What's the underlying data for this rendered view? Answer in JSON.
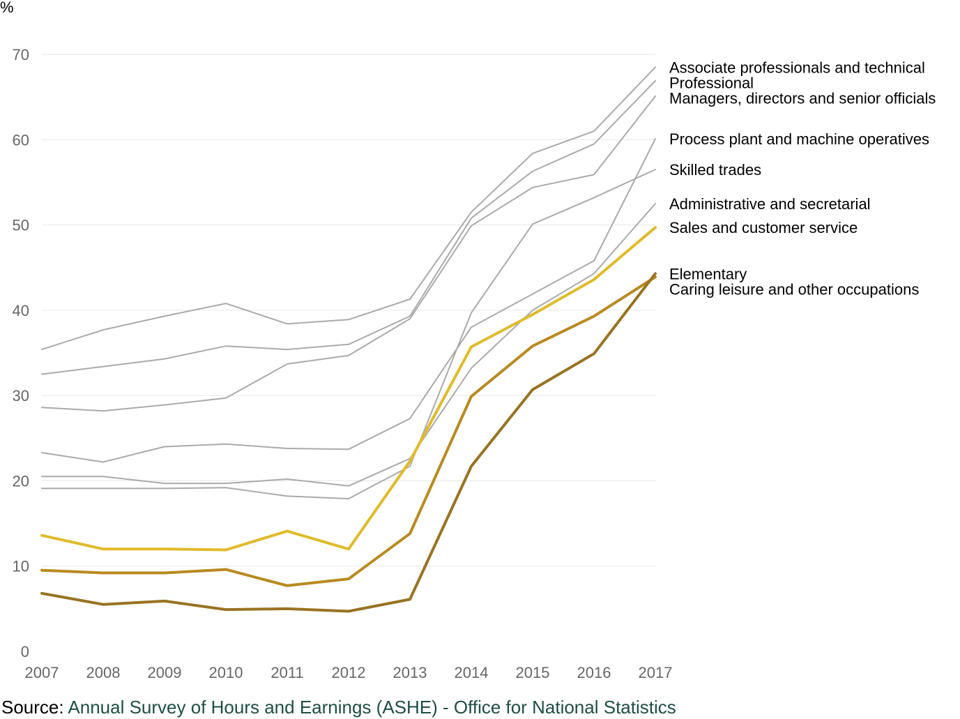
{
  "chart_data": {
    "type": "line",
    "y_unit_label": "%",
    "x": [
      "2007",
      "2008",
      "2009",
      "2010",
      "2011",
      "2012",
      "2013",
      "2014",
      "2015",
      "2016",
      "2017"
    ],
    "ylim": [
      0,
      70
    ],
    "y_ticks": [
      0,
      10,
      20,
      30,
      40,
      50,
      60,
      70
    ],
    "grid": true,
    "legend": "direct labels at right end of lines",
    "series": [
      {
        "name": "Associate professionals and technical",
        "color": "#aaaaaa",
        "width": 2,
        "values": [
          35.4,
          37.7,
          39.3,
          40.8,
          38.4,
          38.9,
          41.3,
          51.5,
          58.4,
          61.0,
          68.5
        ]
      },
      {
        "name": "Professional",
        "color": "#aaaaaa",
        "width": 2,
        "values": [
          32.5,
          33.4,
          34.3,
          35.8,
          35.4,
          36.0,
          39.3,
          50.8,
          56.3,
          59.5,
          66.9
        ]
      },
      {
        "name": "Managers, directors and senior officials",
        "color": "#aaaaaa",
        "width": 2,
        "values": [
          28.6,
          28.2,
          28.9,
          29.7,
          33.7,
          34.7,
          39.0,
          49.9,
          54.4,
          55.9,
          65.1
        ]
      },
      {
        "name": "Process plant and machine operatives",
        "color": "#aaaaaa",
        "width": 2,
        "values": [
          23.3,
          22.2,
          24.0,
          24.3,
          23.8,
          23.7,
          27.3,
          38.0,
          41.9,
          45.8,
          60.1
        ]
      },
      {
        "name": "Skilled trades",
        "color": "#aaaaaa",
        "width": 2,
        "values": [
          19.1,
          19.1,
          19.1,
          19.2,
          18.2,
          17.9,
          21.7,
          39.7,
          50.1,
          53.2,
          56.5
        ]
      },
      {
        "name": "Administrative and secretarial",
        "color": "#aaaaaa",
        "width": 2,
        "values": [
          20.5,
          20.5,
          19.7,
          19.7,
          20.2,
          19.4,
          22.6,
          33.2,
          40.0,
          44.3,
          52.5
        ]
      },
      {
        "name": "Sales and customer service",
        "color": "#e0bb2a",
        "width": 4,
        "values": [
          13.6,
          12.0,
          12.0,
          11.9,
          14.1,
          12.0,
          22.3,
          35.7,
          39.5,
          43.6,
          49.7
        ]
      },
      {
        "name": "Caring leisure and other occupations",
        "color": "#b88a20",
        "width": 4,
        "values": [
          9.5,
          9.2,
          9.2,
          9.6,
          7.7,
          8.5,
          13.8,
          29.9,
          35.8,
          39.3,
          43.9
        ]
      },
      {
        "name": "Elementary",
        "color": "#987322",
        "width": 4,
        "values": [
          6.8,
          5.5,
          5.9,
          4.9,
          5.0,
          4.7,
          6.1,
          21.7,
          30.7,
          34.9,
          44.3
        ]
      }
    ]
  },
  "source": {
    "prefix": "Source: ",
    "link_text": "Annual Survey of Hours and Earnings (ASHE) - Office for National Statistics"
  }
}
